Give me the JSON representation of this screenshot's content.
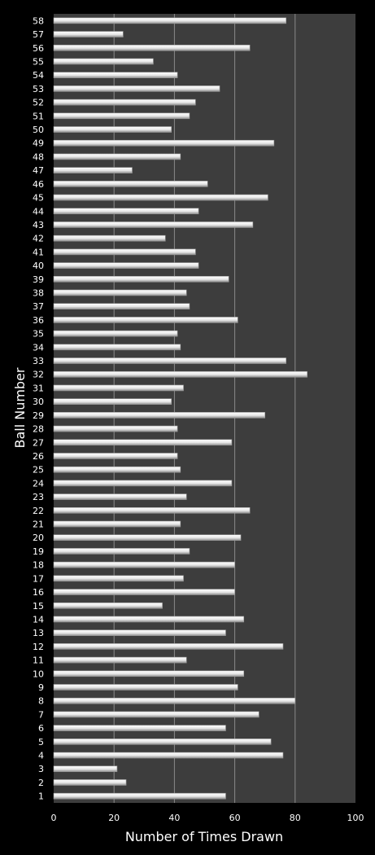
{
  "chart_data": {
    "type": "bar",
    "orientation": "horizontal",
    "xlabel": "Number of Times Drawn",
    "ylabel": "Ball Number",
    "xlim": [
      0,
      100
    ],
    "xticks": [
      0,
      20,
      40,
      60,
      80,
      100
    ],
    "grid": "vertical",
    "legend": "none",
    "categories": [
      "1",
      "2",
      "3",
      "4",
      "5",
      "6",
      "7",
      "8",
      "9",
      "10",
      "11",
      "12",
      "13",
      "14",
      "15",
      "16",
      "17",
      "18",
      "19",
      "20",
      "21",
      "22",
      "23",
      "24",
      "25",
      "26",
      "27",
      "28",
      "29",
      "30",
      "31",
      "32",
      "33",
      "34",
      "35",
      "36",
      "37",
      "38",
      "39",
      "40",
      "41",
      "42",
      "43",
      "44",
      "45",
      "46",
      "47",
      "48",
      "49",
      "50",
      "51",
      "52",
      "53",
      "54",
      "55",
      "56",
      "57",
      "58"
    ],
    "values": [
      57,
      24,
      21,
      76,
      72,
      57,
      68,
      80,
      61,
      63,
      44,
      76,
      57,
      63,
      36,
      60,
      43,
      60,
      45,
      62,
      42,
      65,
      44,
      59,
      42,
      41,
      59,
      41,
      70,
      39,
      43,
      84,
      77,
      42,
      41,
      61,
      45,
      44,
      58,
      48,
      47,
      37,
      66,
      48,
      71,
      51,
      26,
      42,
      73,
      39,
      45,
      47,
      55,
      41,
      33,
      65,
      23,
      77
    ],
    "colors": {
      "background": "#000000",
      "plot_area": "#3d3d3d",
      "bar": "#e8e8e8",
      "grid": "#8a8a8a",
      "text": "#ffffff"
    }
  }
}
